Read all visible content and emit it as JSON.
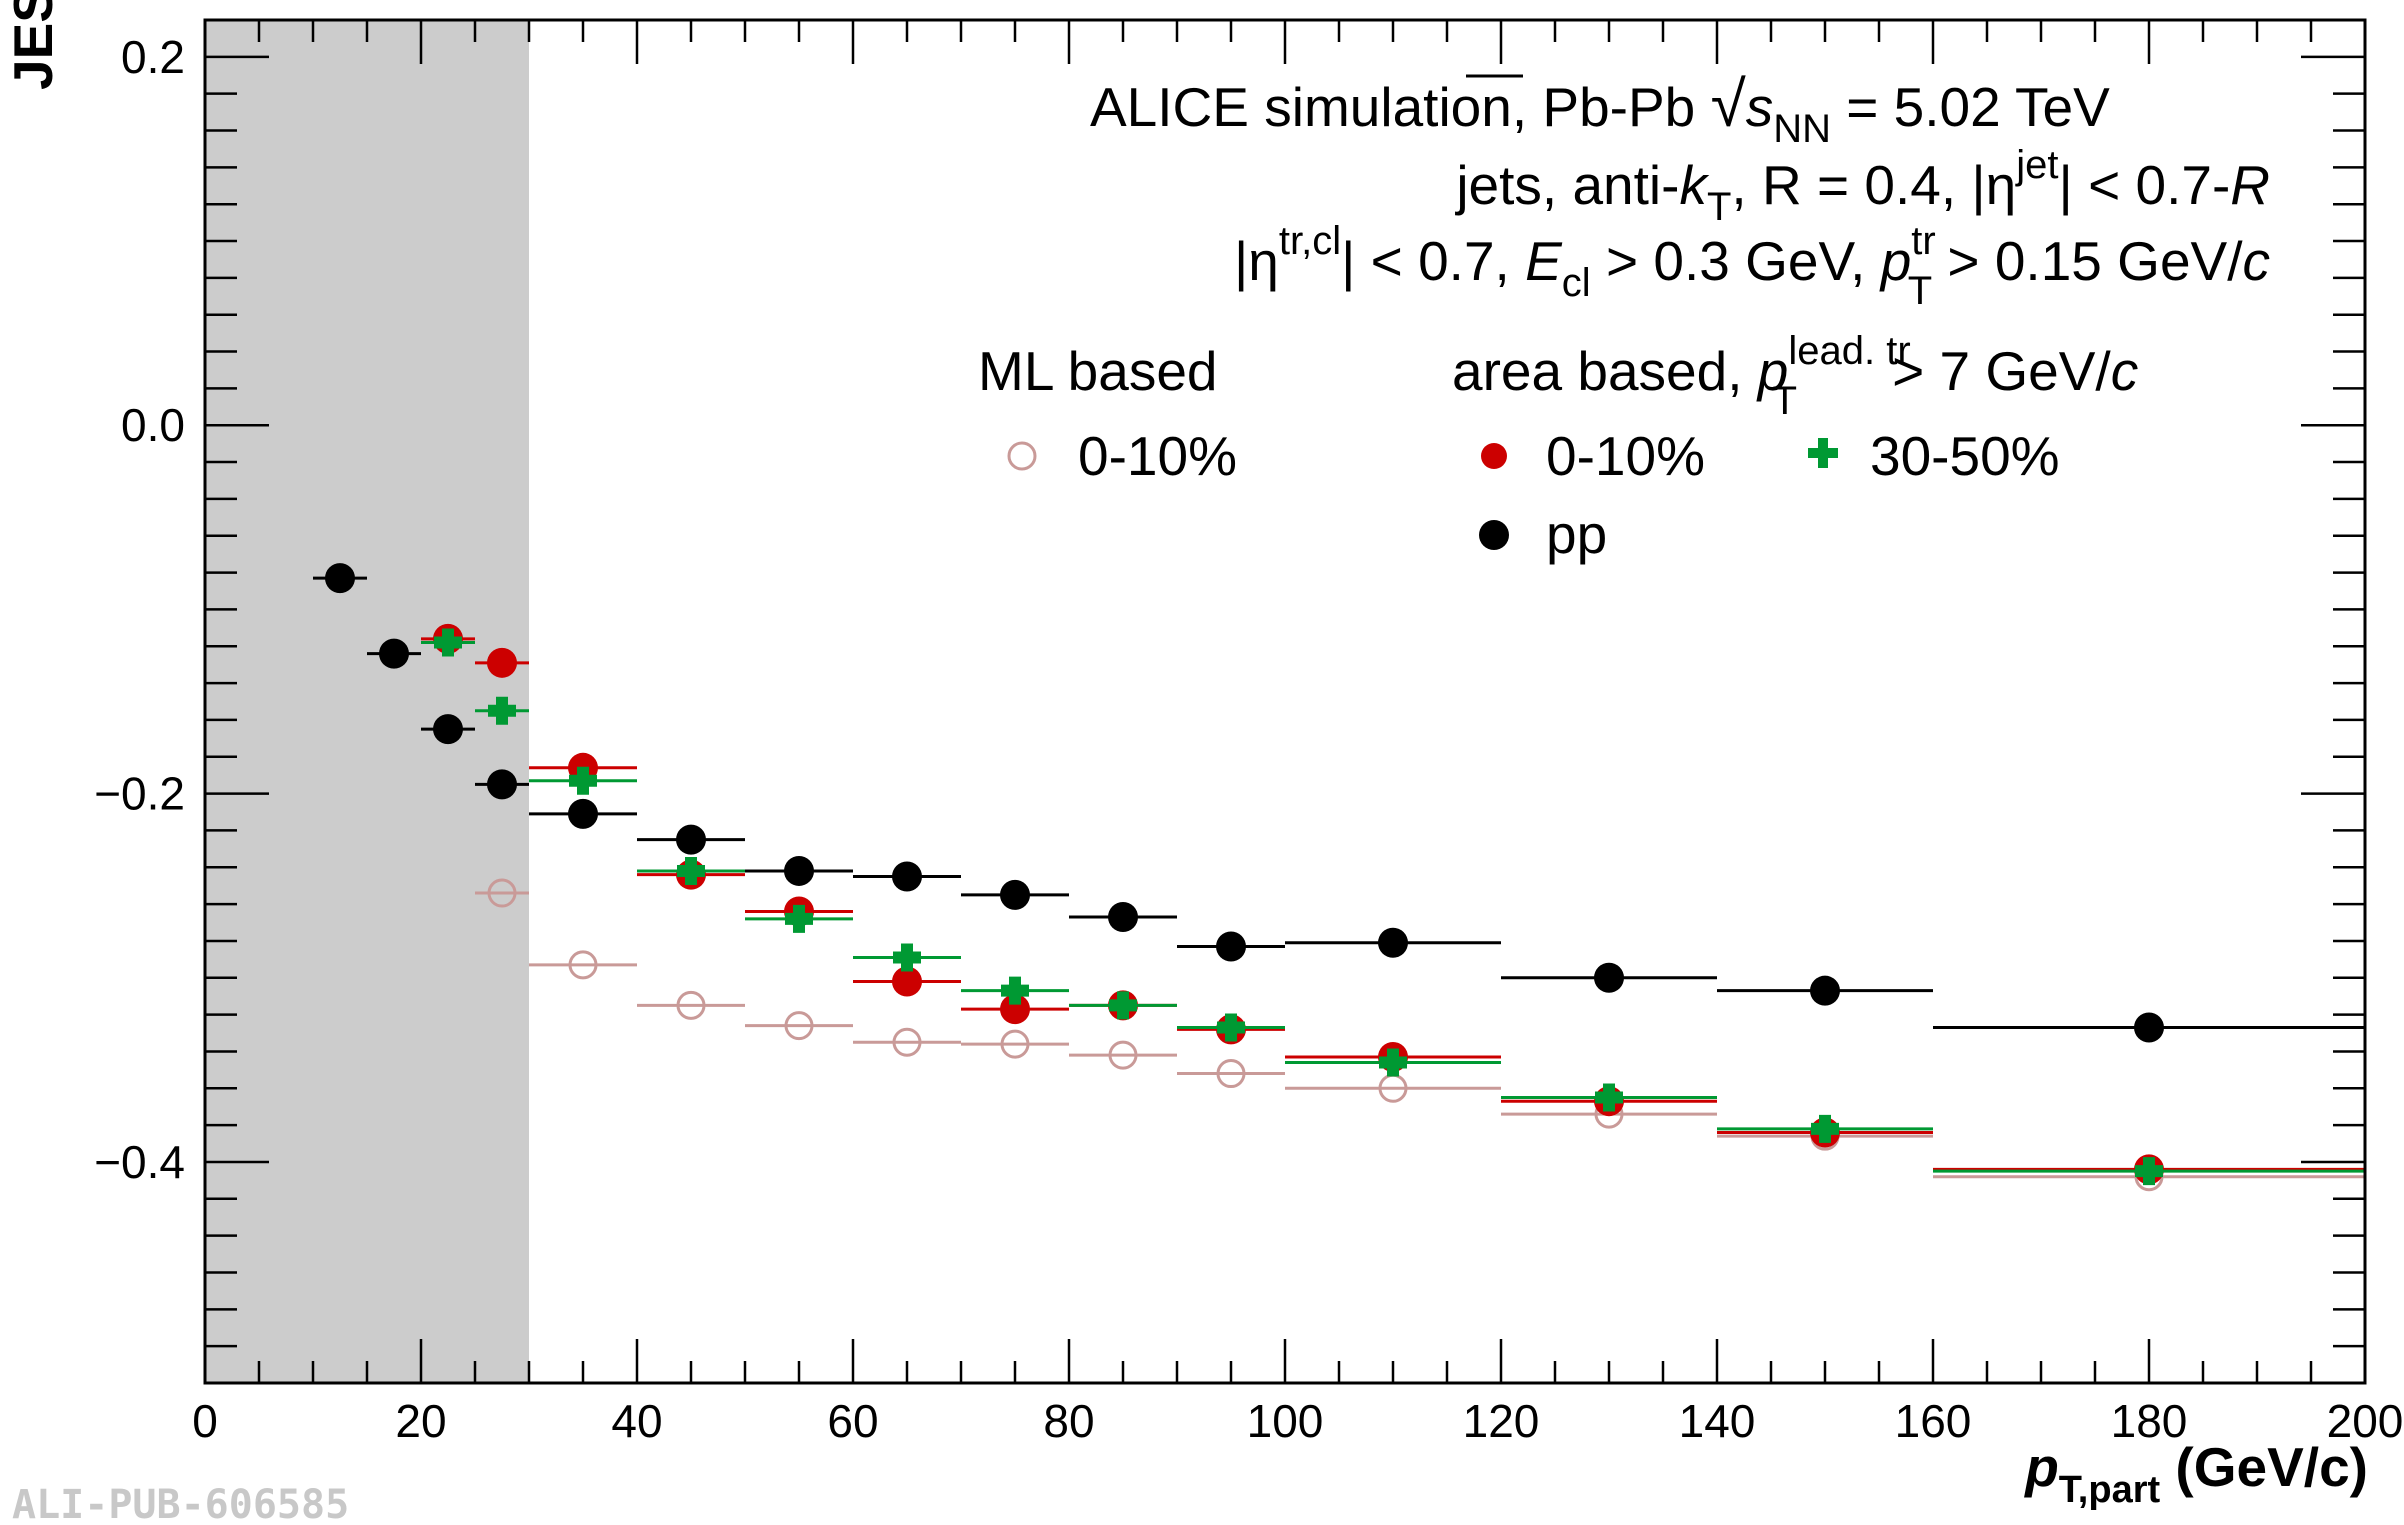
{
  "chart_data": {
    "type": "scatter",
    "title": "",
    "ylabel": "JES",
    "xlabel": {
      "main": "p",
      "sub": "T,part",
      "unit": " (GeV/c)"
    },
    "xlim": [
      0,
      200
    ],
    "ylim": [
      -0.52,
      0.22
    ],
    "x_ticks": [
      0,
      20,
      40,
      60,
      80,
      100,
      120,
      140,
      160,
      180,
      200
    ],
    "x_tick_labels": [
      "0",
      "20",
      "40",
      "60",
      "80",
      "100",
      "120",
      "140",
      "160",
      "180",
      "200"
    ],
    "y_ticks": [
      0.2,
      0.0,
      -0.2,
      -0.4
    ],
    "y_tick_labels": [
      "0.2",
      "0.0",
      "−0.2",
      "−0.4"
    ],
    "shaded_region": {
      "x": [
        0,
        30
      ],
      "color": "#cccccc"
    },
    "info_lines": [
      "ALICE simulation, Pb-Pb √s_NN = 5.02 TeV",
      "jets, anti-k_T, R = 0.4, |η^jet| < 0.7-R",
      "|η^tr,cl| < 0.7, E_cl > 0.3 GeV, p_T^tr > 0.15 GeV/c"
    ],
    "legend_headers": {
      "ml": "ML based",
      "area": "area based, p_T^lead. tr > 7 GeV/c"
    },
    "series": [
      {
        "name": "0-10%",
        "group": "ML based",
        "marker": "open-circle",
        "color": "#c99a98",
        "points": [
          {
            "x": 27.5,
            "y": -0.254,
            "xerr": 2.5
          },
          {
            "x": 35,
            "y": -0.293,
            "xerr": 5
          },
          {
            "x": 45,
            "y": -0.315,
            "xerr": 5
          },
          {
            "x": 55,
            "y": -0.326,
            "xerr": 5
          },
          {
            "x": 65,
            "y": -0.335,
            "xerr": 5
          },
          {
            "x": 75,
            "y": -0.336,
            "xerr": 5
          },
          {
            "x": 85,
            "y": -0.342,
            "xerr": 5
          },
          {
            "x": 95,
            "y": -0.352,
            "xerr": 5
          },
          {
            "x": 110,
            "y": -0.36,
            "xerr": 10
          },
          {
            "x": 130,
            "y": -0.374,
            "xerr": 10
          },
          {
            "x": 150,
            "y": -0.386,
            "xerr": 10
          },
          {
            "x": 180,
            "y": -0.408,
            "xerr": 20
          }
        ]
      },
      {
        "name": "0-10%",
        "group": "area based",
        "marker": "filled-circle",
        "color": "#cc0000",
        "points": [
          {
            "x": 22.5,
            "y": -0.116,
            "xerr": 2.5
          },
          {
            "x": 27.5,
            "y": -0.129,
            "xerr": 2.5
          },
          {
            "x": 35,
            "y": -0.186,
            "xerr": 5
          },
          {
            "x": 45,
            "y": -0.244,
            "xerr": 5
          },
          {
            "x": 55,
            "y": -0.264,
            "xerr": 5
          },
          {
            "x": 65,
            "y": -0.302,
            "xerr": 5
          },
          {
            "x": 75,
            "y": -0.317,
            "xerr": 5
          },
          {
            "x": 85,
            "y": -0.315,
            "xerr": 5
          },
          {
            "x": 95,
            "y": -0.328,
            "xerr": 5
          },
          {
            "x": 110,
            "y": -0.343,
            "xerr": 10
          },
          {
            "x": 130,
            "y": -0.367,
            "xerr": 10
          },
          {
            "x": 150,
            "y": -0.384,
            "xerr": 10
          },
          {
            "x": 180,
            "y": -0.404,
            "xerr": 20
          }
        ]
      },
      {
        "name": "30-50%",
        "group": "area based",
        "marker": "cross",
        "color": "#009933",
        "points": [
          {
            "x": 22.5,
            "y": -0.118,
            "xerr": 2.5
          },
          {
            "x": 27.5,
            "y": -0.155,
            "xerr": 2.5
          },
          {
            "x": 35,
            "y": -0.193,
            "xerr": 5
          },
          {
            "x": 45,
            "y": -0.242,
            "xerr": 5
          },
          {
            "x": 55,
            "y": -0.268,
            "xerr": 5
          },
          {
            "x": 65,
            "y": -0.289,
            "xerr": 5
          },
          {
            "x": 75,
            "y": -0.307,
            "xerr": 5
          },
          {
            "x": 85,
            "y": -0.315,
            "xerr": 5
          },
          {
            "x": 95,
            "y": -0.327,
            "xerr": 5
          },
          {
            "x": 110,
            "y": -0.346,
            "xerr": 10
          },
          {
            "x": 130,
            "y": -0.365,
            "xerr": 10
          },
          {
            "x": 150,
            "y": -0.382,
            "xerr": 10
          },
          {
            "x": 180,
            "y": -0.405,
            "xerr": 20
          }
        ]
      },
      {
        "name": "pp",
        "group": "area based",
        "marker": "filled-circle",
        "color": "#000000",
        "points": [
          {
            "x": 12.5,
            "y": -0.083,
            "xerr": 2.5
          },
          {
            "x": 17.5,
            "y": -0.124,
            "xerr": 2.5
          },
          {
            "x": 22.5,
            "y": -0.165,
            "xerr": 2.5
          },
          {
            "x": 27.5,
            "y": -0.195,
            "xerr": 2.5
          },
          {
            "x": 35,
            "y": -0.211,
            "xerr": 5
          },
          {
            "x": 45,
            "y": -0.225,
            "xerr": 5
          },
          {
            "x": 55,
            "y": -0.242,
            "xerr": 5
          },
          {
            "x": 65,
            "y": -0.245,
            "xerr": 5
          },
          {
            "x": 75,
            "y": -0.255,
            "xerr": 5
          },
          {
            "x": 85,
            "y": -0.267,
            "xerr": 5
          },
          {
            "x": 95,
            "y": -0.283,
            "xerr": 5
          },
          {
            "x": 110,
            "y": -0.281,
            "xerr": 10
          },
          {
            "x": 130,
            "y": -0.3,
            "xerr": 10
          },
          {
            "x": 150,
            "y": -0.307,
            "xerr": 10
          },
          {
            "x": 180,
            "y": -0.327,
            "xerr": 20
          }
        ]
      }
    ]
  },
  "footer": {
    "pub_id": "ALI-PUB-606585"
  }
}
